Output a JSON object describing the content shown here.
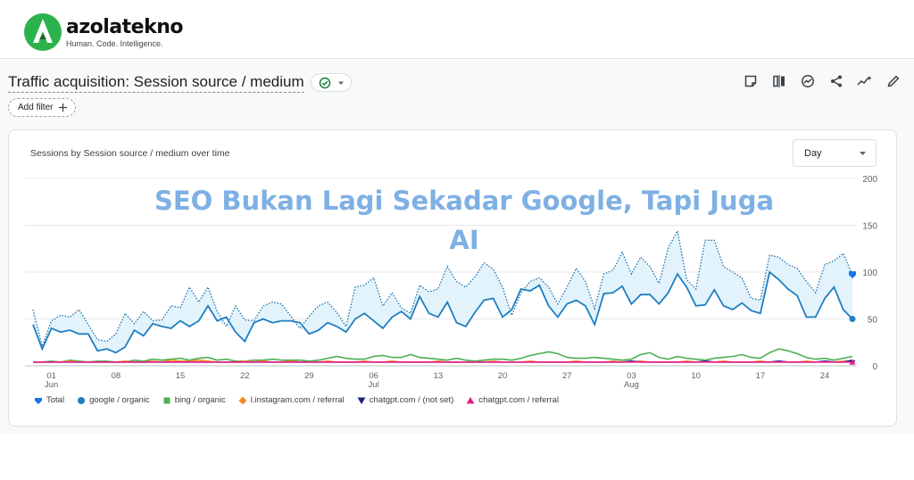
{
  "brand": {
    "name": "azolatekno",
    "tagline": "Human. Code. Intelligence."
  },
  "report": {
    "title": "Traffic acquisition: Session source / medium",
    "add_filter": "Add filter",
    "card_title": "Sessions by Session source / medium over time",
    "granularity": "Day"
  },
  "toolbar": [
    "notes-icon",
    "compare-icon",
    "insights-icon",
    "share-icon",
    "trend-icon",
    "edit-icon"
  ],
  "overlay_text": "SEO Bukan Lagi Sekadar Google, Tapi Juga AI",
  "colors": {
    "total": "#1a73e8",
    "google": "#1f7fc0",
    "bing": "#4caf50",
    "instagram": "#f28b22",
    "chatgpt_notset": "#1a237e",
    "chatgpt_referral": "#e91e8c",
    "area": "#e3f3fc"
  },
  "chart_data": {
    "type": "line",
    "x_start": "May 30",
    "x_end": "Aug 27",
    "x_tick_labels": [
      "01",
      "08",
      "15",
      "22",
      "29",
      "06",
      "13",
      "20",
      "27",
      "03",
      "10",
      "17",
      "24"
    ],
    "x_month_labels": [
      {
        "label": "Jun",
        "at": "01"
      },
      {
        "label": "Jul",
        "at": "06"
      },
      {
        "label": "Aug",
        "at": "03"
      }
    ],
    "y_ticks": [
      0,
      50,
      100,
      150,
      200
    ],
    "ylim": [
      0,
      200
    ],
    "series": [
      {
        "name": "Total",
        "values": [
          60,
          21,
          48,
          54,
          52,
          60,
          44,
          28,
          26,
          34,
          56,
          45,
          58,
          48,
          49,
          64,
          62,
          84,
          68,
          84,
          58,
          42,
          64,
          49,
          48,
          64,
          68,
          66,
          53,
          40,
          53,
          64,
          68,
          57,
          42,
          84,
          86,
          94,
          64,
          78,
          62,
          56,
          86,
          79,
          82,
          106,
          90,
          84,
          95,
          110,
          103,
          84,
          54,
          78,
          90,
          94,
          84,
          66,
          84,
          104,
          90,
          61,
          98,
          102,
          121,
          98,
          116,
          106,
          88,
          126,
          144,
          92,
          82,
          134,
          134,
          106,
          100,
          94,
          72,
          70,
          118,
          116,
          108,
          104,
          90,
          78,
          108,
          112,
          120,
          97
        ]
      },
      {
        "name": "google / organic",
        "values": [
          44,
          18,
          40,
          36,
          38,
          34,
          34,
          16,
          18,
          14,
          20,
          38,
          32,
          45,
          42,
          40,
          48,
          42,
          48,
          64,
          48,
          52,
          36,
          26,
          46,
          50,
          46,
          48,
          48,
          46,
          34,
          38,
          46,
          42,
          36,
          50,
          56,
          48,
          40,
          52,
          58,
          50,
          74,
          56,
          52,
          68,
          46,
          42,
          57,
          70,
          72,
          52,
          60,
          82,
          80,
          86,
          64,
          52,
          66,
          70,
          64,
          44,
          77,
          78,
          85,
          66,
          76,
          76,
          66,
          78,
          98,
          84,
          64,
          65,
          81,
          64,
          60,
          67,
          59,
          56,
          100,
          92,
          82,
          75,
          52,
          52,
          72,
          84,
          60,
          50
        ]
      },
      {
        "name": "bing / organic",
        "values": [
          4,
          4,
          5,
          4,
          6,
          5,
          4,
          5,
          5,
          4,
          4,
          6,
          5,
          7,
          6,
          7,
          8,
          6,
          8,
          9,
          6,
          7,
          5,
          5,
          6,
          6,
          7,
          6,
          6,
          6,
          5,
          6,
          8,
          10,
          8,
          7,
          7,
          10,
          11,
          9,
          9,
          12,
          9,
          8,
          7,
          6,
          8,
          6,
          5,
          6,
          7,
          7,
          6,
          8,
          11,
          13,
          15,
          13,
          9,
          8,
          8,
          9,
          8,
          7,
          6,
          7,
          12,
          14,
          9,
          7,
          10,
          8,
          7,
          6,
          8,
          9,
          10,
          12,
          9,
          8,
          14,
          18,
          16,
          13,
          9,
          7,
          8,
          6,
          8,
          10
        ]
      },
      {
        "name": "l.instagram.com / referral",
        "values": [
          4,
          4,
          4,
          4,
          5,
          4,
          4,
          4,
          4,
          4,
          5,
          4,
          4,
          5,
          4,
          6,
          5,
          5,
          6,
          5,
          4,
          4,
          4,
          5,
          4,
          5,
          4,
          4,
          5,
          4,
          4,
          4,
          5,
          4,
          4,
          4,
          5,
          4,
          4,
          5,
          4,
          4,
          4,
          4,
          5,
          4,
          4,
          4,
          4,
          4,
          5,
          4,
          4,
          4,
          5,
          4,
          4,
          4,
          4,
          5,
          4,
          4,
          4,
          5,
          4,
          4,
          5,
          4,
          4,
          4,
          4,
          5,
          4,
          4,
          4,
          5,
          4,
          4,
          4,
          5,
          4,
          4,
          4,
          4,
          5,
          4,
          4,
          4,
          5,
          4
        ]
      },
      {
        "name": "chatgpt.com / (not set)",
        "values": [
          4,
          4,
          4,
          4,
          4,
          4,
          4,
          4,
          4,
          4,
          4,
          4,
          4,
          4,
          4,
          4,
          4,
          4,
          4,
          4,
          4,
          4,
          4,
          4,
          4,
          4,
          4,
          4,
          4,
          4,
          4,
          4,
          4,
          4,
          4,
          4,
          4,
          4,
          4,
          4,
          4,
          4,
          4,
          4,
          4,
          4,
          4,
          4,
          4,
          4,
          4,
          4,
          4,
          4,
          4,
          4,
          4,
          4,
          4,
          4,
          4,
          4,
          4,
          4,
          4,
          5,
          4,
          4,
          4,
          4,
          4,
          4,
          4,
          5,
          4,
          4,
          4,
          4,
          4,
          4,
          4,
          5,
          4,
          4,
          4,
          4,
          5,
          4,
          4,
          6
        ]
      },
      {
        "name": "chatgpt.com / referral",
        "values": [
          4,
          4,
          4,
          4,
          4,
          4,
          4,
          4,
          4,
          4,
          4,
          4,
          4,
          4,
          4,
          4,
          4,
          4,
          4,
          4,
          4,
          4,
          4,
          4,
          4,
          4,
          4,
          4,
          4,
          4,
          4,
          4,
          4,
          4,
          4,
          4,
          4,
          4,
          4,
          4,
          4,
          4,
          4,
          4,
          4,
          4,
          4,
          4,
          4,
          4,
          4,
          4,
          4,
          4,
          4,
          4,
          4,
          4,
          4,
          4,
          4,
          4,
          4,
          4,
          4,
          4,
          4,
          4,
          4,
          4,
          4,
          4,
          4,
          4,
          4,
          4,
          4,
          4,
          4,
          4,
          4,
          4,
          4,
          4,
          4,
          4,
          4,
          4,
          4,
          4
        ]
      }
    ],
    "grid": true,
    "legend_position": "bottom-left"
  },
  "legend_markers": [
    "pin",
    "circle",
    "square",
    "diamond",
    "triangle-down",
    "triangle-up"
  ]
}
